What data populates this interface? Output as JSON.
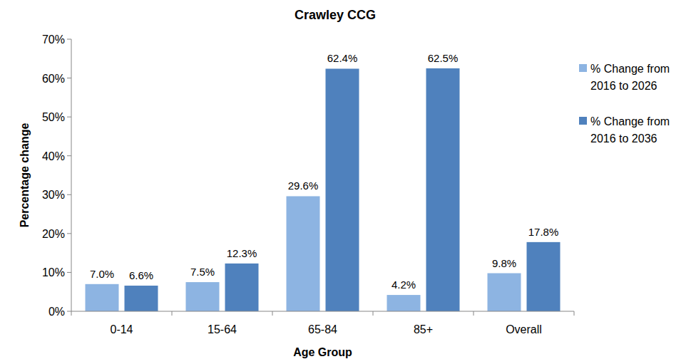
{
  "chart_data": {
    "type": "bar",
    "title": "Crawley CCG",
    "x_label": "Age Group",
    "y_label": "Percentage change",
    "categories": [
      "0-14",
      "15-64",
      "65-84",
      "85+",
      "Overall"
    ],
    "series": [
      {
        "name": "% Change from 2016 to 2026",
        "color": "#8db4e2",
        "values": [
          7.0,
          7.5,
          29.6,
          4.2,
          9.8
        ],
        "value_labels": [
          "7.0%",
          "7.5%",
          "29.6%",
          "4.2%",
          "9.8%"
        ]
      },
      {
        "name": "% Change from 2016 to 2036",
        "color": "#4f81bd",
        "values": [
          6.6,
          12.3,
          62.4,
          62.5,
          17.8
        ],
        "value_labels": [
          "6.6%",
          "12.3%",
          "62.4%",
          "62.5%",
          "17.8%"
        ]
      }
    ],
    "ylim": [
      0,
      70
    ],
    "yticks": [
      {
        "value": 0,
        "label": "0%"
      },
      {
        "value": 10,
        "label": "10%"
      },
      {
        "value": 20,
        "label": "20%"
      },
      {
        "value": 30,
        "label": "30%"
      },
      {
        "value": 40,
        "label": "40%"
      },
      {
        "value": 50,
        "label": "50%"
      },
      {
        "value": 60,
        "label": "60%"
      },
      {
        "value": 70,
        "label": "70%"
      }
    ],
    "grid": false,
    "legend": "right",
    "data_labels": true
  }
}
